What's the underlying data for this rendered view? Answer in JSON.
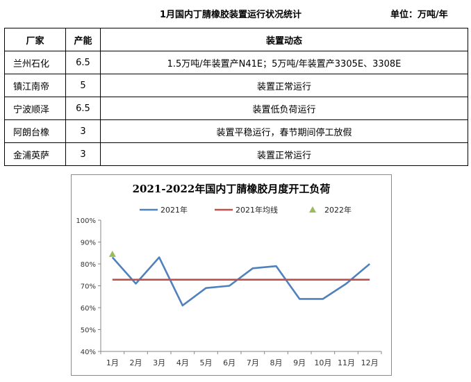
{
  "header": {
    "title": "1月国内丁腈橡胶装置运行状况统计",
    "unit": "单位：万吨/年"
  },
  "table": {
    "columns": [
      "厂家",
      "产能",
      "装置动态"
    ],
    "rows": [
      {
        "company": "兰州石化",
        "capacity": "6.5",
        "status": "1.5万吨/年装置产N41E；5万吨/年装置产3305E、3308E"
      },
      {
        "company": "镇江南帝",
        "capacity": "5",
        "status": "装置正常运行"
      },
      {
        "company": "宁波顺泽",
        "capacity": "6.5",
        "status": "装置低负荷运行"
      },
      {
        "company": "阿朗台橡",
        "capacity": "3",
        "status": "装置平稳运行，春节期间停工放假"
      },
      {
        "company": "金浦英萨",
        "capacity": "3",
        "status": "装置正常运行"
      }
    ]
  },
  "chart_data": {
    "type": "line",
    "title": "2021-2022年国内丁腈橡胶月度开工负荷",
    "categories": [
      "1月",
      "2月",
      "3月",
      "4月",
      "5月",
      "6月",
      "7月",
      "8月",
      "9月",
      "10月",
      "11月",
      "12月"
    ],
    "y_ticks": [
      "40%",
      "50%",
      "60%",
      "70%",
      "80%",
      "90%",
      "100%"
    ],
    "ylim": [
      40,
      100
    ],
    "legend_position": "top",
    "grid": false,
    "series": [
      {
        "name": "2021年",
        "type": "line",
        "color": "#4f81bd",
        "values": [
          83,
          71,
          83,
          61,
          69,
          70,
          78,
          79,
          64,
          64,
          71,
          80
        ]
      },
      {
        "name": "2021年均线",
        "type": "line",
        "color": "#c0504d",
        "values": [
          72.8,
          72.8,
          72.8,
          72.8,
          72.8,
          72.8,
          72.8,
          72.8,
          72.8,
          72.8,
          72.8,
          72.8
        ]
      },
      {
        "name": "2022年",
        "type": "marker",
        "color": "#9bbb59",
        "values": [
          84.5,
          null,
          null,
          null,
          null,
          null,
          null,
          null,
          null,
          null,
          null,
          null
        ]
      }
    ]
  }
}
